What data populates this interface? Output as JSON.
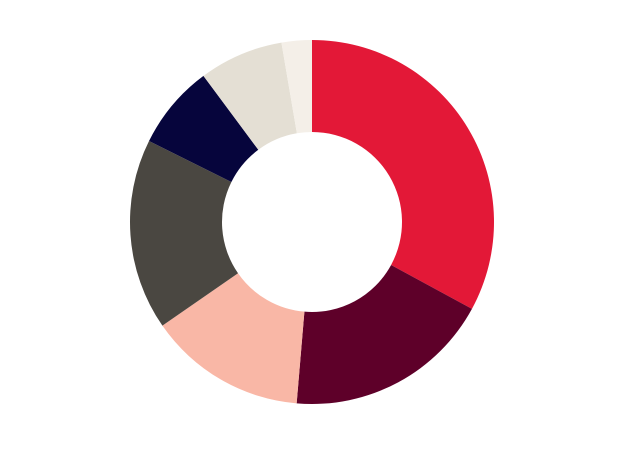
{
  "chart_data": {
    "type": "pie",
    "variant": "donut",
    "title": "",
    "legend": "none",
    "series": [
      {
        "values": [
          34.3,
          19.2,
          14.6,
          17.7,
          7.8,
          7.8,
          2.8
        ],
        "colors": [
          "#e31837",
          "#5e0029",
          "#f9b7a6",
          "#4a4741",
          "#06053c",
          "#e4dfd4",
          "#f4efe8"
        ]
      }
    ]
  }
}
